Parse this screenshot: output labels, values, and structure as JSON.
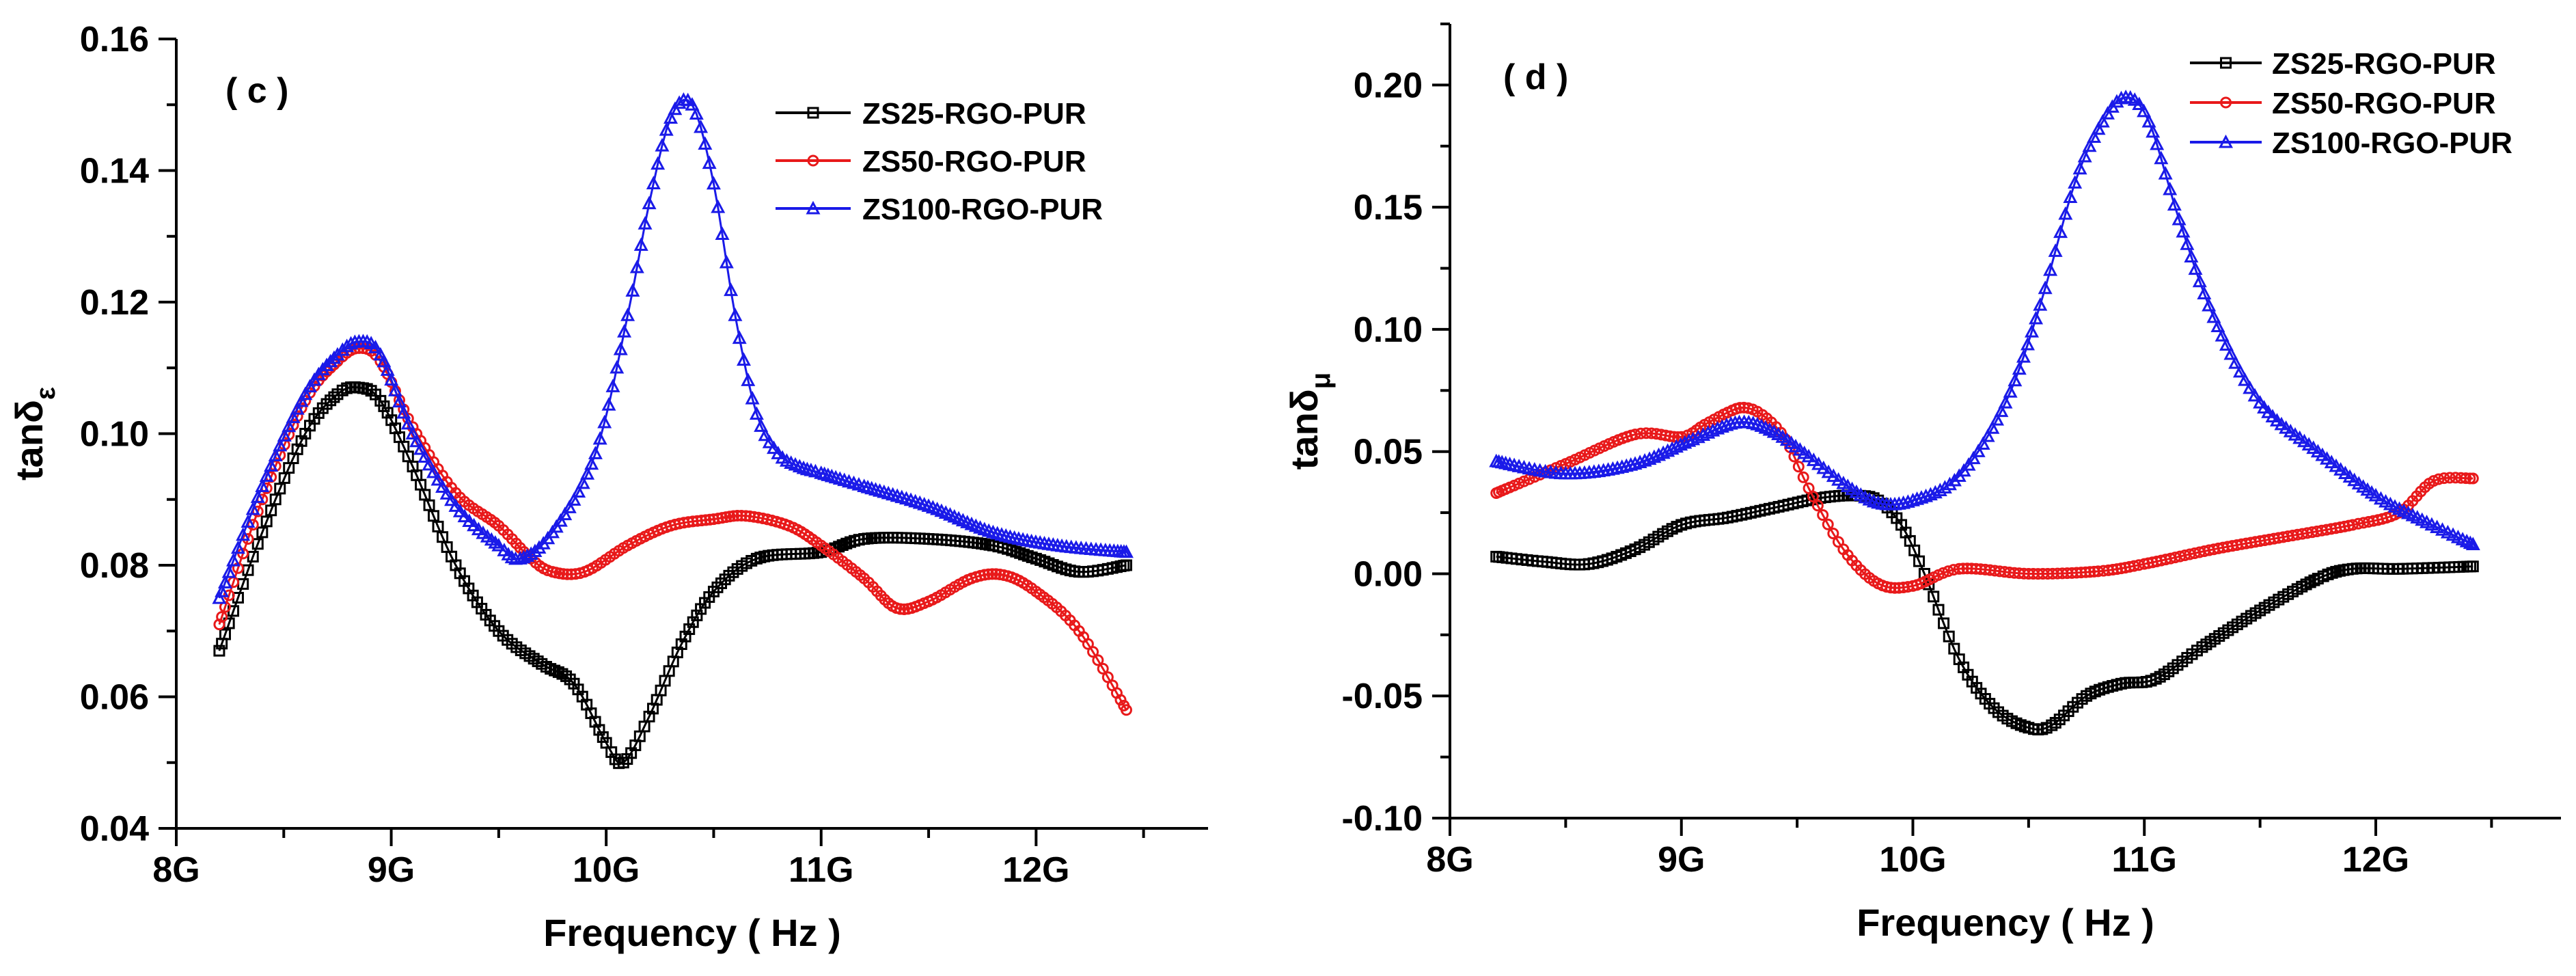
{
  "chart_data": [
    {
      "type": "line",
      "panel_label": "( c )",
      "xlabel": "Frequency ( Hz )",
      "ylabel_main": "tan",
      "ylabel_delta": "δ",
      "ylabel_sub": "ε",
      "xlim": [
        8.0,
        12.8
      ],
      "ylim": [
        0.04,
        0.16
      ],
      "xticks": [
        8,
        9,
        10,
        11,
        12
      ],
      "xtick_labels": [
        "8G",
        "9G",
        "10G",
        "11G",
        "12G"
      ],
      "yticks": [
        0.04,
        0.06,
        0.08,
        0.1,
        0.12,
        0.14,
        0.16
      ],
      "ytick_labels": [
        "0.04",
        "0.06",
        "0.08",
        "0.10",
        "0.12",
        "0.14",
        "0.16"
      ],
      "legend_position": "top-right",
      "series": [
        {
          "name": "ZS25-RGO-PUR",
          "color": "#000000",
          "marker": "square",
          "x": [
            8.2,
            8.4,
            8.6,
            8.75,
            8.85,
            8.95,
            9.1,
            9.3,
            9.5,
            9.7,
            9.85,
            10.0,
            10.08,
            10.2,
            10.35,
            10.5,
            10.7,
            11.0,
            11.2,
            11.5,
            11.8,
            12.0,
            12.2,
            12.42
          ],
          "values": [
            0.067,
            0.085,
            0.1,
            0.106,
            0.107,
            0.105,
            0.095,
            0.08,
            0.07,
            0.065,
            0.062,
            0.053,
            0.05,
            0.057,
            0.068,
            0.076,
            0.081,
            0.082,
            0.084,
            0.084,
            0.083,
            0.081,
            0.079,
            0.08
          ]
        },
        {
          "name": "ZS50-RGO-PUR",
          "color": "#e8191a",
          "marker": "circle",
          "x": [
            8.2,
            8.4,
            8.6,
            8.75,
            8.85,
            8.95,
            9.1,
            9.3,
            9.5,
            9.65,
            9.75,
            9.9,
            10.1,
            10.3,
            10.5,
            10.65,
            10.85,
            11.0,
            11.2,
            11.35,
            11.5,
            11.7,
            11.85,
            12.0,
            12.2,
            12.42
          ],
          "values": [
            0.071,
            0.09,
            0.105,
            0.111,
            0.113,
            0.111,
            0.101,
            0.091,
            0.086,
            0.081,
            0.079,
            0.079,
            0.083,
            0.086,
            0.087,
            0.0875,
            0.086,
            0.083,
            0.078,
            0.0735,
            0.0745,
            0.078,
            0.0785,
            0.076,
            0.07,
            0.058
          ]
        },
        {
          "name": "ZS100-RGO-PUR",
          "color": "#1a1ae8",
          "marker": "triangle",
          "x": [
            8.2,
            8.4,
            8.6,
            8.75,
            8.85,
            8.95,
            9.1,
            9.3,
            9.5,
            9.6,
            9.75,
            9.95,
            10.1,
            10.2,
            10.3,
            10.4,
            10.5,
            10.6,
            10.7,
            10.8,
            10.9,
            11.0,
            11.2,
            11.5,
            11.8,
            12.1,
            12.42
          ],
          "values": [
            0.075,
            0.092,
            0.106,
            0.112,
            0.114,
            0.112,
            0.1,
            0.089,
            0.083,
            0.081,
            0.085,
            0.097,
            0.118,
            0.135,
            0.148,
            0.15,
            0.138,
            0.118,
            0.103,
            0.097,
            0.095,
            0.094,
            0.092,
            0.089,
            0.085,
            0.083,
            0.082
          ]
        }
      ]
    },
    {
      "type": "line",
      "panel_label": "( d )",
      "xlabel": "Frequency ( Hz )",
      "ylabel_main": "tan",
      "ylabel_delta": "δ",
      "ylabel_sub": "μ",
      "xlim": [
        8.0,
        12.8
      ],
      "ylim": [
        -0.1,
        0.225
      ],
      "xticks": [
        8,
        9,
        10,
        11,
        12
      ],
      "xtick_labels": [
        "8G",
        "9G",
        "10G",
        "11G",
        "12G"
      ],
      "yticks": [
        -0.1,
        -0.05,
        0.0,
        0.05,
        0.1,
        0.15,
        0.2
      ],
      "ytick_labels": [
        "-0.10",
        "-0.05",
        "0.00",
        "0.05",
        "0.10",
        "0.15",
        "0.20"
      ],
      "legend_position": "top-right",
      "series": [
        {
          "name": "ZS25-RGO-PUR",
          "color": "#000000",
          "marker": "square",
          "x": [
            8.2,
            8.4,
            8.6,
            8.8,
            9.0,
            9.2,
            9.4,
            9.6,
            9.75,
            9.85,
            9.95,
            10.05,
            10.2,
            10.35,
            10.5,
            10.6,
            10.75,
            10.9,
            11.05,
            11.25,
            11.5,
            11.75,
            11.9,
            12.1,
            12.42
          ],
          "values": [
            0.007,
            0.005,
            0.004,
            0.01,
            0.02,
            0.023,
            0.027,
            0.031,
            0.032,
            0.03,
            0.02,
            0.0,
            -0.035,
            -0.055,
            -0.063,
            -0.062,
            -0.05,
            -0.045,
            -0.043,
            -0.03,
            -0.015,
            -0.002,
            0.002,
            0.002,
            0.003
          ]
        },
        {
          "name": "ZS50-RGO-PUR",
          "color": "#e8191a",
          "marker": "circle",
          "x": [
            8.2,
            8.5,
            8.8,
            9.0,
            9.1,
            9.2,
            9.27,
            9.35,
            9.45,
            9.55,
            9.7,
            9.85,
            10.0,
            10.2,
            10.5,
            10.8,
            11.0,
            11.3,
            11.6,
            11.9,
            12.1,
            12.25,
            12.42
          ],
          "values": [
            0.033,
            0.045,
            0.057,
            0.056,
            0.061,
            0.066,
            0.068,
            0.065,
            0.055,
            0.035,
            0.01,
            -0.004,
            -0.005,
            0.002,
            0.0,
            0.001,
            0.004,
            0.01,
            0.015,
            0.02,
            0.025,
            0.038,
            0.039
          ]
        },
        {
          "name": "ZS100-RGO-PUR",
          "color": "#1a1ae8",
          "marker": "triangle",
          "x": [
            8.2,
            8.5,
            8.8,
            9.05,
            9.25,
            9.4,
            9.55,
            9.7,
            9.85,
            10.0,
            10.2,
            10.4,
            10.55,
            10.7,
            10.82,
            10.92,
            11.02,
            11.15,
            11.3,
            11.5,
            11.75,
            12.0,
            12.2,
            12.42
          ],
          "values": [
            0.046,
            0.041,
            0.045,
            0.055,
            0.062,
            0.058,
            0.048,
            0.037,
            0.029,
            0.03,
            0.04,
            0.07,
            0.11,
            0.16,
            0.185,
            0.195,
            0.185,
            0.145,
            0.105,
            0.07,
            0.05,
            0.032,
            0.022,
            0.012
          ]
        }
      ]
    }
  ]
}
